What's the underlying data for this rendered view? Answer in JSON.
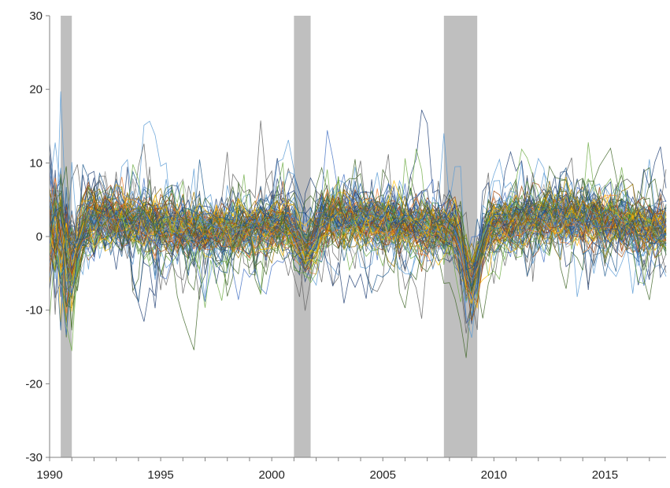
{
  "chart_data": {
    "type": "line",
    "title": "",
    "xlabel": "",
    "ylabel": "",
    "xlim": [
      1990,
      2017.75
    ],
    "ylim": [
      -30,
      30
    ],
    "y_ticks": [
      -30,
      -20,
      -10,
      0,
      10,
      20,
      30
    ],
    "y_tick_labels": [
      "-30",
      "-20",
      "-10",
      "0",
      "10",
      "20",
      "30"
    ],
    "x_ticks": [
      1990,
      1995,
      2000,
      2005,
      2010,
      2015
    ],
    "x_tick_labels": [
      "1990",
      "1995",
      "2000",
      "2005",
      "2010",
      "2015"
    ],
    "grid": false,
    "legend": "none",
    "shaded_periods": [
      {
        "start": 1990.5,
        "end": 1991.0
      },
      {
        "start": 2001.0,
        "end": 2001.75
      },
      {
        "start": 2007.75,
        "end": 2009.25
      }
    ],
    "series_count": 120,
    "series_style": "many thin multicolored lines, quarterly growth rates",
    "colors": [
      "#4472C4",
      "#ED7D31",
      "#A5A5A5",
      "#FFC000",
      "#5B9BD5",
      "#70AD47",
      "#264478",
      "#9E480E",
      "#636363",
      "#997300",
      "#255E91",
      "#43682B"
    ],
    "shading_color": "#bfbfbf"
  }
}
